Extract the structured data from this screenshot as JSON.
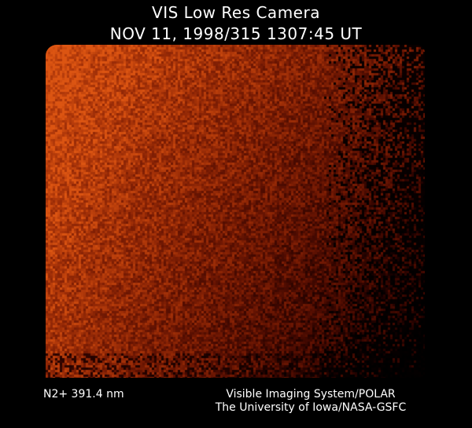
{
  "header": {
    "title": "VIS Low Res Camera",
    "datetime": "NOV 11, 1998/315 1307:45 UT"
  },
  "image": {
    "description_colors": {
      "bright": "#c45410",
      "mid": "#8a2a06",
      "dark": "#000000"
    }
  },
  "footer": {
    "filter": "N2+ 391.4 nm",
    "credit_line1": "Visible Imaging System/POLAR",
    "credit_line2": "The University of Iowa/NASA-GSFC"
  }
}
